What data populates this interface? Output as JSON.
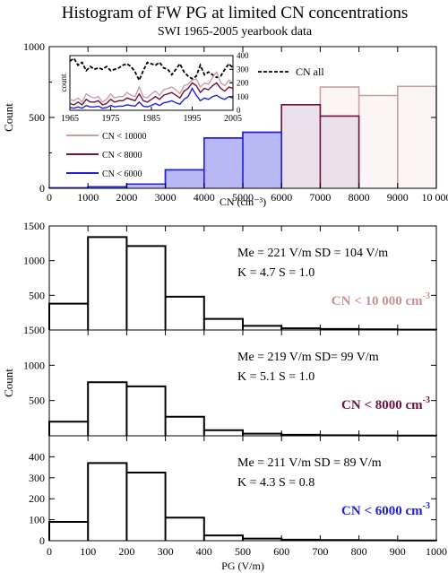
{
  "title": "Histogram of FW PG at limited CN concentrations",
  "subtitle": "SWI 1965-2005 yearbook data",
  "colors": {
    "cn10000": "#c8a0a0",
    "cn8000": "#6e1240",
    "cn6000": "#2020d8",
    "fill6000": "#b8b8f4",
    "fill8000": "#ece0ec",
    "fill10000": "#fbf5f5",
    "text10000": "#c89090",
    "text8000": "#6e1240",
    "text6000": "#2020d8"
  },
  "chart_data": [
    {
      "type": "bar",
      "name": "cn_histogram",
      "xlabel": "CN (cm⁻³)",
      "ylabel": "Count",
      "xlim": [
        0,
        10000
      ],
      "ylim": [
        0,
        1000
      ],
      "xticks": [
        0,
        1000,
        2000,
        3000,
        4000,
        5000,
        6000,
        7000,
        8000,
        9000,
        10000
      ],
      "xtick_labels": [
        "0",
        "1000",
        "2000",
        "3000",
        "4000",
        "5000",
        "6000",
        "7000",
        "8000",
        "9000",
        "10 000"
      ],
      "yticks": [
        0,
        500,
        1000
      ],
      "bin_edges": [
        0,
        1000,
        2000,
        3000,
        4000,
        5000,
        6000,
        7000,
        8000,
        9000,
        10000
      ],
      "series": [
        {
          "name": "CN < 10000",
          "values": [
            3,
            10,
            30,
            130,
            355,
            395,
            590,
            715,
            655,
            720
          ],
          "color": "#c8a0a0",
          "fill": "#fbf5f5"
        },
        {
          "name": "CN < 8000",
          "values": [
            3,
            10,
            30,
            130,
            355,
            395,
            590,
            510
          ],
          "color": "#6e1240",
          "fill": "#ece0ec"
        },
        {
          "name": "CN < 6000",
          "values": [
            3,
            10,
            30,
            130,
            355,
            395
          ],
          "color": "#2020d8",
          "fill": "#b8b8f4"
        }
      ],
      "legend": {
        "placement": "left"
      },
      "inset": {
        "xlim": [
          1965,
          2005
        ],
        "ylim": [
          0,
          400
        ],
        "ylabel": "count",
        "xticks": [
          1965,
          1975,
          1985,
          1995,
          2005
        ],
        "yticks": [
          0,
          100,
          200,
          300,
          400
        ],
        "x": [
          1965,
          1966,
          1967,
          1968,
          1969,
          1970,
          1971,
          1972,
          1973,
          1974,
          1975,
          1976,
          1977,
          1978,
          1979,
          1980,
          1981,
          1982,
          1983,
          1984,
          1985,
          1986,
          1987,
          1988,
          1989,
          1990,
          1991,
          1992,
          1993,
          1994,
          1995,
          1996,
          1997,
          1998,
          1999,
          2000,
          2001,
          2002,
          2003,
          2004,
          2005
        ],
        "series": [
          {
            "name": "CN all",
            "style": "dashed",
            "color": "#000000",
            "values": [
              360,
              380,
              330,
              350,
              290,
              320,
              300,
              310,
              300,
              320,
              290,
              300,
              310,
              330,
              340,
              320,
              280,
              220,
              290,
              350,
              340,
              330,
              350,
              310,
              300,
              260,
              300,
              340,
              280,
              250,
              230,
              250,
              330,
              260,
              280,
              260,
              240,
              250,
              300,
              340,
              310
            ]
          },
          {
            "name": "CN < 10000",
            "color": "#c8a0a0",
            "values": [
              80,
              70,
              90,
              60,
              120,
              100,
              90,
              100,
              60,
              80,
              120,
              90,
              100,
              100,
              130,
              110,
              100,
              170,
              100,
              90,
              120,
              140,
              110,
              150,
              160,
              170,
              150,
              120,
              180,
              190,
              220,
              230,
              170,
              200,
              190,
              240,
              280,
              200,
              180,
              220,
              200
            ]
          },
          {
            "name": "CN < 8000",
            "color": "#6e1240",
            "values": [
              50,
              40,
              60,
              40,
              80,
              60,
              60,
              70,
              40,
              50,
              80,
              60,
              70,
              70,
              90,
              80,
              70,
              120,
              70,
              60,
              80,
              100,
              80,
              110,
              120,
              130,
              110,
              90,
              140,
              160,
              200,
              180,
              130,
              160,
              150,
              180,
              200,
              160,
              140,
              170,
              160
            ]
          },
          {
            "name": "CN < 6000",
            "color": "#2020d8",
            "values": [
              20,
              15,
              25,
              15,
              35,
              25,
              25,
              30,
              15,
              20,
              35,
              25,
              30,
              30,
              40,
              35,
              30,
              60,
              30,
              25,
              35,
              50,
              35,
              55,
              60,
              70,
              55,
              45,
              80,
              100,
              160,
              110,
              70,
              90,
              80,
              100,
              110,
              90,
              80,
              100,
              90
            ]
          }
        ]
      }
    },
    {
      "type": "bar",
      "name": "pg_cn10000",
      "xlim": [
        0,
        1000
      ],
      "ylim": [
        0,
        1500
      ],
      "yticks": [
        500,
        1000,
        1500
      ],
      "bin_edges": [
        0,
        100,
        200,
        300,
        400,
        500,
        600,
        700,
        800,
        900,
        1000
      ],
      "values": [
        380,
        1340,
        1210,
        480,
        160,
        60,
        25,
        15,
        10,
        5
      ],
      "annotation": {
        "line1": "Me = 221 V/m   SD = 104 V/m",
        "line2": "K = 4.7   S = 1.0",
        "label": "CN < 10 000 cm",
        "sup": "-3"
      }
    },
    {
      "type": "bar",
      "name": "pg_cn8000",
      "xlim": [
        0,
        1000
      ],
      "ylim": [
        0,
        1500
      ],
      "yticks": [
        500,
        1000,
        1500
      ],
      "ylabel": "Count",
      "bin_edges": [
        0,
        100,
        200,
        300,
        400,
        500,
        600,
        700,
        800,
        900,
        1000
      ],
      "values": [
        200,
        760,
        700,
        270,
        80,
        30,
        15,
        8,
        5,
        3
      ],
      "annotation": {
        "line1": "Me = 219 V/m  SD= 99 V/m",
        "line2": "K = 5.1   S = 1.0",
        "label": "CN < 8000 cm",
        "sup": "-3"
      }
    },
    {
      "type": "bar",
      "name": "pg_cn6000",
      "xlim": [
        0,
        1000
      ],
      "ylim": [
        0,
        500
      ],
      "yticks": [
        0,
        100,
        200,
        300,
        400
      ],
      "xticks": [
        0,
        100,
        200,
        300,
        400,
        500,
        600,
        700,
        800,
        900,
        1000
      ],
      "xlabel": "PG (V/m)",
      "bin_edges": [
        0,
        100,
        200,
        300,
        400,
        500,
        600,
        700,
        800,
        900,
        1000
      ],
      "values": [
        90,
        370,
        325,
        110,
        25,
        10,
        5,
        3,
        2,
        1
      ],
      "annotation": {
        "line1": "Me = 211 V/m   SD = 89 V/m",
        "line2": "K = 4.3   S = 0.8",
        "label": "CN < 6000 cm",
        "sup": "-3"
      }
    }
  ]
}
